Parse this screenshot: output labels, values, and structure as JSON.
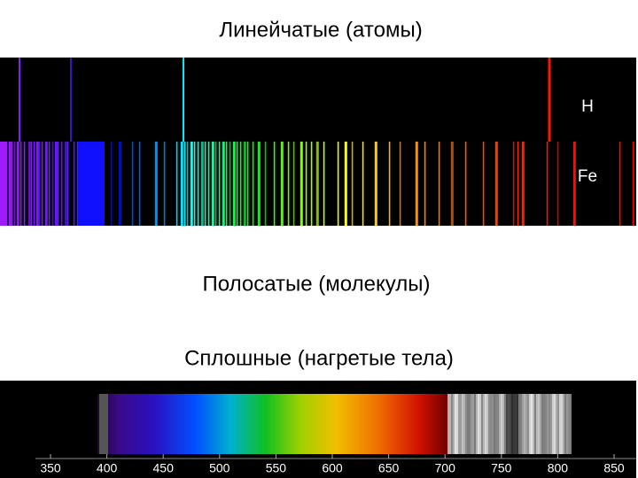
{
  "headings": {
    "line_spectra": "Линейчатые (атомы)",
    "band_spectra": "Полосатые (молекулы)",
    "continuous_spectra": "Сплошные (нагретые тела)"
  },
  "spectra": {
    "hydrogen": "H",
    "iron": "Fe"
  },
  "scale": {
    "labels": [
      "350",
      "400",
      "450",
      "500",
      "550",
      "600",
      "650",
      "700",
      "750",
      "800",
      "850"
    ]
  }
}
